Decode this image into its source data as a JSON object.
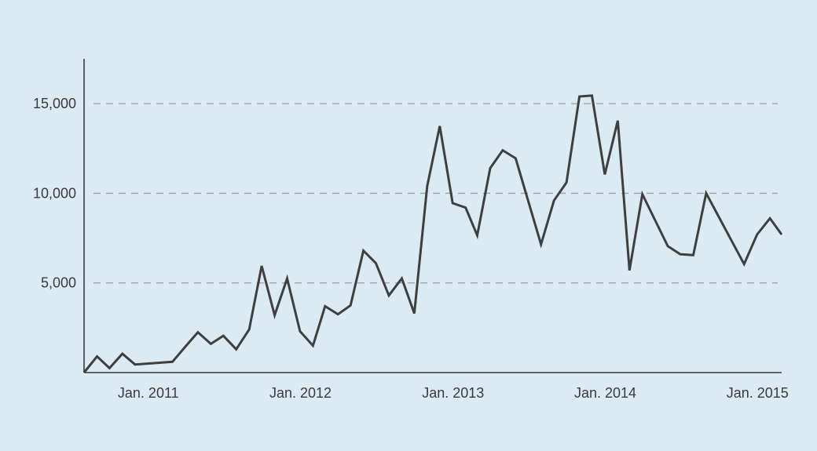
{
  "colors": {
    "background": "#dcebf3",
    "line": "#3f3f3f",
    "axis": "#3a3a3a",
    "grid": "#9aa0a4",
    "text": "#3a3a3a"
  },
  "chart_data": {
    "type": "line",
    "title": "",
    "xlabel": "",
    "ylabel": "",
    "x_axis": "date",
    "xlim": [
      "2010-08-15",
      "2015-03-15"
    ],
    "ylim": [
      0,
      17500
    ],
    "y_ticks": [
      5000,
      10000,
      15000
    ],
    "y_tick_labels": [
      "5,000",
      "10,000",
      "15,000"
    ],
    "x_ticks": [
      "2011-01-01",
      "2012-01-01",
      "2013-01-01",
      "2014-01-01",
      "2015-01-01"
    ],
    "x_tick_labels": [
      "Jan. 2011",
      "Jan. 2012",
      "Jan. 2013",
      "Jan. 2014",
      "Jan. 2015"
    ],
    "grid": "horizontal dashed",
    "legend": "none",
    "series": [
      {
        "points": [
          [
            "2010-08-15",
            0
          ],
          [
            "2010-09-15",
            900
          ],
          [
            "2010-10-15",
            250
          ],
          [
            "2010-11-15",
            1050
          ],
          [
            "2010-12-15",
            450
          ],
          [
            "2011-03-15",
            600
          ],
          [
            "2011-04-15",
            1450
          ],
          [
            "2011-05-15",
            2250
          ],
          [
            "2011-06-15",
            1600
          ],
          [
            "2011-07-15",
            2050
          ],
          [
            "2011-08-15",
            1300
          ],
          [
            "2011-09-15",
            2400
          ],
          [
            "2011-10-15",
            5950
          ],
          [
            "2011-11-15",
            3200
          ],
          [
            "2011-12-15",
            5250
          ],
          [
            "2012-01-15",
            2300
          ],
          [
            "2012-02-15",
            1500
          ],
          [
            "2012-03-15",
            3700
          ],
          [
            "2012-04-15",
            3250
          ],
          [
            "2012-05-15",
            3750
          ],
          [
            "2012-06-15",
            6800
          ],
          [
            "2012-07-15",
            6100
          ],
          [
            "2012-08-15",
            4300
          ],
          [
            "2012-09-15",
            5250
          ],
          [
            "2012-10-15",
            3300
          ],
          [
            "2012-11-15",
            10400
          ],
          [
            "2012-12-15",
            13750
          ],
          [
            "2013-01-15",
            9450
          ],
          [
            "2013-02-15",
            9200
          ],
          [
            "2013-03-15",
            7650
          ],
          [
            "2013-04-15",
            11400
          ],
          [
            "2013-05-15",
            12400
          ],
          [
            "2013-06-15",
            11950
          ],
          [
            "2013-08-15",
            7150
          ],
          [
            "2013-09-15",
            9600
          ],
          [
            "2013-10-15",
            10600
          ],
          [
            "2013-11-15",
            15400
          ],
          [
            "2013-12-15",
            15450
          ],
          [
            "2014-01-15",
            11050
          ],
          [
            "2014-02-15",
            14050
          ],
          [
            "2014-03-15",
            5700
          ],
          [
            "2014-04-15",
            9950
          ],
          [
            "2014-06-15",
            7050
          ],
          [
            "2014-07-15",
            6600
          ],
          [
            "2014-08-15",
            6550
          ],
          [
            "2014-09-15",
            10000
          ],
          [
            "2014-12-15",
            6050
          ],
          [
            "2015-01-15",
            7700
          ],
          [
            "2015-02-15",
            8600
          ],
          [
            "2015-03-15",
            7700
          ]
        ]
      }
    ]
  }
}
